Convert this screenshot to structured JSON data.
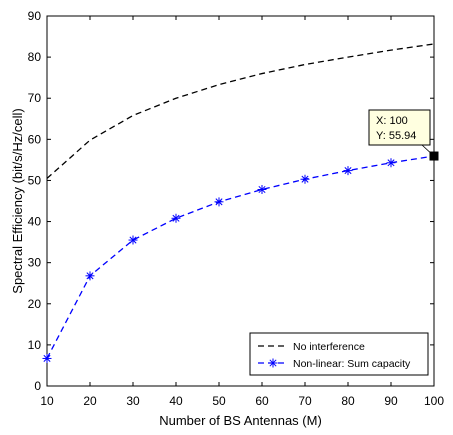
{
  "chart_data": {
    "type": "line",
    "title": "",
    "xlabel": "Number of BS Antennas (M)",
    "ylabel": "Spectral Efficiency (bit/s/Hz/cell)",
    "xlim": [
      10,
      100
    ],
    "ylim": [
      0,
      90
    ],
    "xticks": [
      "10",
      "20",
      "30",
      "40",
      "50",
      "60",
      "70",
      "80",
      "90",
      "100"
    ],
    "yticks": [
      "0",
      "10",
      "20",
      "30",
      "40",
      "50",
      "60",
      "70",
      "80",
      "90"
    ],
    "x": [
      10,
      20,
      30,
      40,
      50,
      60,
      70,
      80,
      90,
      100
    ],
    "series": [
      {
        "name": "No interference",
        "color": "#000000",
        "line_style": "dashed",
        "marker": "none",
        "values": [
          50.5,
          59.8,
          65.8,
          70.0,
          73.3,
          76.0,
          78.2,
          80.0,
          81.7,
          83.2
        ]
      },
      {
        "name": "Non-linear: Sum capacity",
        "color": "#0000ff",
        "line_style": "dashed",
        "marker": "asterisk",
        "values": [
          6.7,
          26.8,
          35.5,
          40.8,
          44.8,
          47.8,
          50.3,
          52.4,
          54.3,
          55.94
        ]
      }
    ],
    "legend_position": "bottom-right",
    "grid": false,
    "datatip": {
      "series_index": 1,
      "x": 100,
      "y": 55.94,
      "x_text": "X: 100",
      "y_text": "Y: 55.94"
    }
  }
}
